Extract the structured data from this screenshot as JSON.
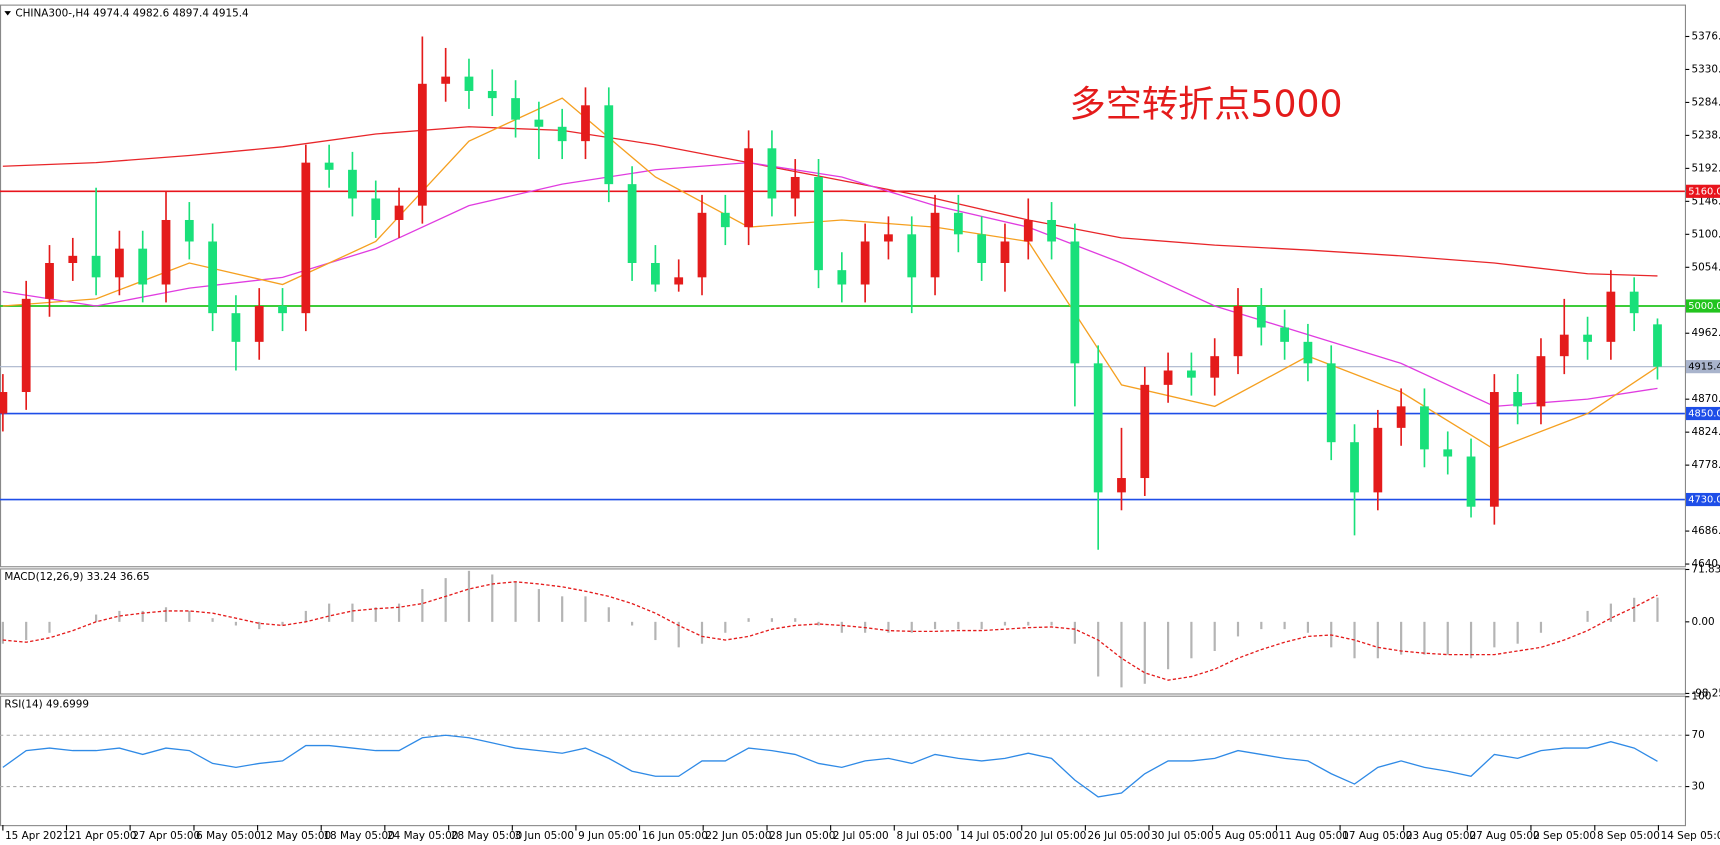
{
  "chart_data": [
    {
      "type": "candlestick",
      "title": "CHINA300-,H4  4974.4 4982.6 4897.4 4915.4",
      "up_color": "#e41b1b",
      "down_color": "#19e07a",
      "xlim": [
        -0.1,
        72.2
      ],
      "xticks": [
        {
          "value": 0,
          "label": "15 Apr 2021"
        },
        {
          "value": 2.73,
          "label": "21 Apr 05:00"
        },
        {
          "value": 5.46,
          "label": "27 Apr 05:00"
        },
        {
          "value": 8.2,
          "label": "6 May 05:00"
        },
        {
          "value": 10.93,
          "label": "12 May 05:00"
        },
        {
          "value": 13.66,
          "label": "18 May 05:00"
        },
        {
          "value": 16.39,
          "label": "24 May 05:00"
        },
        {
          "value": 19.13,
          "label": "28 May 05:00"
        },
        {
          "value": 21.86,
          "label": "3 Jun 05:00"
        },
        {
          "value": 24.59,
          "label": "9 Jun 05:00"
        },
        {
          "value": 27.32,
          "label": "16 Jun 05:00"
        },
        {
          "value": 30.05,
          "label": "22 Jun 05:00"
        },
        {
          "value": 32.79,
          "label": "28 Jun 05:00"
        },
        {
          "value": 35.52,
          "label": "2 Jul 05:00"
        },
        {
          "value": 38.25,
          "label": "8 Jul 05:00"
        },
        {
          "value": 40.98,
          "label": "14 Jul 05:00"
        },
        {
          "value": 43.72,
          "label": "20 Jul 05:00"
        },
        {
          "value": 46.45,
          "label": "26 Jul 05:00"
        },
        {
          "value": 49.18,
          "label": "30 Jul 05:00"
        },
        {
          "value": 51.91,
          "label": "5 Aug 05:00"
        },
        {
          "value": 54.65,
          "label": "11 Aug 05:00"
        },
        {
          "value": 57.38,
          "label": "17 Aug 05:00"
        },
        {
          "value": 60.11,
          "label": "23 Aug 05:00"
        },
        {
          "value": 62.84,
          "label": "27 Aug 05:00"
        },
        {
          "value": 65.57,
          "label": "2 Sep 05:00"
        },
        {
          "value": 68.31,
          "label": "8 Sep 05:00"
        },
        {
          "value": 71.04,
          "label": "14 Sep 05:00"
        }
      ],
      "ylim": [
        4637,
        5419
      ],
      "yticks": [
        {
          "value": 5376,
          "label": "5376.0"
        },
        {
          "value": 5330,
          "label": "5330.0"
        },
        {
          "value": 5284,
          "label": "5284.0"
        },
        {
          "value": 5238,
          "label": "5238.0"
        },
        {
          "value": 5192,
          "label": "5192.0"
        },
        {
          "value": 5146,
          "label": "5146.0"
        },
        {
          "value": 5100,
          "label": "5100.0"
        },
        {
          "value": 5054,
          "label": "5054.0"
        },
        {
          "value": 4962,
          "label": "4962.0"
        },
        {
          "value": 4870,
          "label": "4870.0"
        },
        {
          "value": 4824,
          "label": "4824.0"
        },
        {
          "value": 4778,
          "label": "4778.0"
        },
        {
          "value": 4686,
          "label": "4686.0"
        },
        {
          "value": 4640,
          "label": "4640.0"
        }
      ],
      "open": [
        4850,
        4880,
        5010,
        5060,
        5070,
        5040,
        5080,
        5030,
        5120,
        5090,
        4990,
        4950,
        5000,
        4990,
        5200,
        5190,
        5150,
        5120,
        5140,
        5310,
        5320,
        5300,
        5290,
        5260,
        5250,
        5230,
        5280,
        5170,
        5060,
        5030,
        5040,
        5130,
        5110,
        5220,
        5150,
        5180,
        5050,
        5030,
        5090,
        5100,
        5040,
        5130,
        5100,
        5060,
        5090,
        5120,
        5090,
        4920,
        4740,
        4760,
        4890,
        4910,
        4900,
        4930,
        5000,
        4970,
        4950,
        4920,
        4810,
        4740,
        4830,
        4860,
        4800,
        4790,
        4720,
        4880,
        4860,
        4930,
        4960,
        4950,
        5020,
        4974.4
      ],
      "high": [
        4905,
        5035,
        5085,
        5095,
        5165,
        5105,
        5105,
        5160,
        5145,
        5115,
        5015,
        5025,
        5025,
        5225,
        5225,
        5215,
        5175,
        5165,
        5376,
        5360,
        5345,
        5330,
        5315,
        5285,
        5275,
        5305,
        5305,
        5195,
        5085,
        5065,
        5155,
        5155,
        5245,
        5245,
        5205,
        5205,
        5075,
        5115,
        5125,
        5125,
        5155,
        5155,
        5125,
        5115,
        5150,
        5145,
        5115,
        4945,
        4830,
        4915,
        4935,
        4935,
        4955,
        5025,
        5025,
        4995,
        4975,
        4945,
        4835,
        4855,
        4885,
        4885,
        4825,
        4815,
        4905,
        4905,
        4955,
        5010,
        4985,
        5050,
        5040,
        4982.6
      ],
      "low": [
        4825,
        4855,
        4985,
        5035,
        5015,
        5015,
        5005,
        5005,
        5065,
        4965,
        4910,
        4925,
        4965,
        4965,
        5165,
        5125,
        5095,
        5095,
        5115,
        5285,
        5275,
        5265,
        5235,
        5205,
        5205,
        5205,
        5145,
        5035,
        5020,
        5020,
        5015,
        5085,
        5085,
        5125,
        5125,
        5025,
        5005,
        5005,
        5065,
        4990,
        5015,
        5075,
        5035,
        5020,
        5065,
        5065,
        4860,
        4660,
        4715,
        4735,
        4865,
        4875,
        4875,
        4905,
        4945,
        4925,
        4895,
        4785,
        4680,
        4715,
        4805,
        4775,
        4765,
        4705,
        4695,
        4835,
        4835,
        4905,
        4925,
        4925,
        4965,
        4897.4
      ],
      "close": [
        4880,
        5010,
        5060,
        5070,
        5040,
        5080,
        5030,
        5120,
        5090,
        4990,
        4950,
        5000,
        4990,
        5200,
        5190,
        5150,
        5120,
        5140,
        5310,
        5320,
        5300,
        5290,
        5260,
        5250,
        5230,
        5280,
        5170,
        5060,
        5030,
        5040,
        5130,
        5110,
        5220,
        5150,
        5180,
        5050,
        5030,
        5090,
        5100,
        5040,
        5130,
        5100,
        5060,
        5090,
        5120,
        5090,
        4920,
        4740,
        4760,
        4890,
        4910,
        4900,
        4930,
        5000,
        4970,
        4950,
        4920,
        4810,
        4740,
        4830,
        4860,
        4800,
        4790,
        4720,
        4880,
        4860,
        4930,
        4960,
        4950,
        5020,
        4990,
        4915.4
      ],
      "series": [
        {
          "color": "#e8262a",
          "x": [
            0,
            4,
            8,
            12,
            16,
            20,
            24,
            28,
            32,
            36,
            40,
            44,
            48,
            52,
            56,
            60,
            64,
            68,
            71
          ],
          "values": [
            5195,
            5200,
            5210,
            5222,
            5240,
            5250,
            5245,
            5225,
            5200,
            5175,
            5150,
            5120,
            5095,
            5085,
            5078,
            5070,
            5060,
            5045,
            5042
          ]
        },
        {
          "color": "#e03ce0",
          "x": [
            0,
            4,
            8,
            12,
            16,
            20,
            24,
            28,
            32,
            36,
            40,
            44,
            48,
            52,
            56,
            60,
            64,
            68,
            71
          ],
          "values": [
            5020,
            5000,
            5025,
            5040,
            5080,
            5140,
            5170,
            5190,
            5200,
            5180,
            5140,
            5110,
            5060,
            5000,
            4960,
            4920,
            4860,
            4870,
            4885
          ]
        },
        {
          "color": "#f5a020",
          "x": [
            0,
            4,
            8,
            12,
            16,
            20,
            24,
            28,
            32,
            36,
            40,
            44,
            48,
            52,
            56,
            60,
            64,
            68,
            71
          ],
          "values": [
            5000,
            5010,
            5060,
            5030,
            5090,
            5230,
            5290,
            5180,
            5110,
            5120,
            5110,
            5090,
            4890,
            4860,
            4930,
            4880,
            4800,
            4850,
            4915
          ]
        }
      ],
      "hlines": [
        {
          "value": 5160,
          "label": "5160.0",
          "color": "#e8141c",
          "text_color": "#ffffff",
          "width": 1.5
        },
        {
          "value": 5000,
          "label": "5000.0",
          "color": "#22c41e",
          "text_color": "#ffffff",
          "width": 1.5
        },
        {
          "value": 4915.4,
          "label": "4915.4",
          "color": "#a9b4cc",
          "text_color": "#000000",
          "width": 1
        },
        {
          "value": 4850,
          "label": "4850.0",
          "color": "#1e4ee8",
          "text_color": "#ffffff",
          "width": 1.5
        },
        {
          "value": 4730,
          "label": "4730.0",
          "color": "#1e4ee8",
          "text_color": "#ffffff",
          "width": 1.5
        }
      ],
      "annotations": [
        {
          "text": "多空转折点5000",
          "color": "#e41b1b"
        }
      ]
    },
    {
      "type": "macd",
      "title": "MACD(12,26,9) 33.24 36.65",
      "ylim": [
        -98.25,
        71.83
      ],
      "yticks": [
        71.83,
        {
          "value": 0,
          "label": "0.00"
        },
        -98.25
      ],
      "series": [
        {
          "type": "bar",
          "color": "#b4b4b4",
          "values": [
            -30,
            -25,
            -15,
            0,
            10,
            15,
            15,
            20,
            15,
            5,
            -5,
            -10,
            -5,
            15,
            25,
            25,
            20,
            25,
            45,
            60,
            70,
            65,
            55,
            45,
            35,
            35,
            20,
            -5,
            -25,
            -35,
            -30,
            -15,
            5,
            5,
            5,
            -5,
            -15,
            -15,
            -15,
            -15,
            -10,
            -10,
            -10,
            -5,
            -5,
            -5,
            -30,
            -75,
            -90,
            -85,
            -65,
            -50,
            -40,
            -20,
            -10,
            -10,
            -15,
            -35,
            -50,
            -50,
            -45,
            -45,
            -45,
            -50,
            -35,
            -30,
            -15,
            0,
            15,
            25,
            33,
            33.24
          ]
        },
        {
          "type": "line",
          "dash": true,
          "color": "#e41b1b",
          "values": [
            -25,
            -28,
            -22,
            -12,
            0,
            8,
            12,
            15,
            15,
            12,
            5,
            -2,
            -5,
            0,
            8,
            15,
            18,
            20,
            25,
            35,
            45,
            52,
            55,
            52,
            48,
            42,
            35,
            25,
            12,
            -5,
            -20,
            -25,
            -20,
            -10,
            -5,
            -3,
            -5,
            -8,
            -12,
            -13,
            -13,
            -12,
            -12,
            -10,
            -8,
            -7,
            -10,
            -25,
            -50,
            -70,
            -80,
            -75,
            -65,
            -50,
            -38,
            -28,
            -20,
            -18,
            -25,
            -35,
            -40,
            -43,
            -45,
            -45,
            -45,
            -40,
            -35,
            -25,
            -12,
            5,
            20,
            36.65
          ]
        }
      ]
    },
    {
      "type": "line",
      "title": "RSI(14) 49.6999",
      "ylim": [
        0,
        100
      ],
      "yticks": [
        100,
        70,
        30
      ],
      "grid": true,
      "series": [
        {
          "color": "#2f8ae6",
          "values": [
            45,
            58,
            60,
            58,
            58,
            60,
            55,
            60,
            58,
            48,
            45,
            48,
            50,
            62,
            62,
            60,
            58,
            58,
            68,
            70,
            68,
            64,
            60,
            58,
            56,
            60,
            52,
            42,
            38,
            38,
            50,
            50,
            60,
            58,
            55,
            48,
            45,
            50,
            52,
            48,
            55,
            52,
            50,
            52,
            56,
            52,
            35,
            22,
            25,
            40,
            50,
            50,
            52,
            58,
            55,
            52,
            50,
            40,
            32,
            45,
            50,
            45,
            42,
            38,
            55,
            52,
            58,
            60,
            60,
            65,
            60,
            49.6999
          ]
        }
      ]
    }
  ]
}
